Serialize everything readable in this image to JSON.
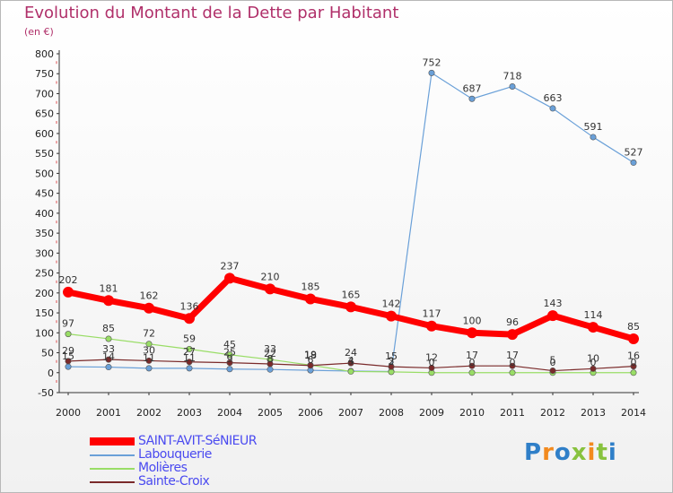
{
  "title": "Evolution du Montant de la Dette par Habitant",
  "subtitle": "(en €)",
  "brand": "Proxiti",
  "chart_data": {
    "type": "line",
    "x": [
      "2000",
      "2001",
      "2002",
      "2003",
      "2004",
      "2005",
      "2006",
      "2007",
      "2008",
      "2009",
      "2010",
      "2011",
      "2012",
      "2013",
      "2014"
    ],
    "ylim": [
      -50,
      800
    ],
    "yticks": [
      -50,
      0,
      50,
      100,
      150,
      200,
      250,
      300,
      350,
      400,
      450,
      500,
      550,
      600,
      650,
      700,
      750,
      800
    ],
    "grid": false,
    "legend_position": "bottom-left",
    "series": [
      {
        "name": "SAINT-AVIT-SéNIEUR",
        "color": "#ff0000",
        "values": [
          202,
          181,
          162,
          136,
          237,
          210,
          185,
          165,
          142,
          117,
          100,
          96,
          143,
          114,
          85
        ],
        "labels": [
          "202",
          "181",
          "162",
          "136",
          "237",
          "210",
          "185",
          "165",
          "142",
          "117",
          "100",
          "96",
          "143",
          "114",
          "85"
        ]
      },
      {
        "name": "Labouquerie",
        "color": "#6aa0d8",
        "values": [
          15,
          14,
          11,
          11,
          9,
          8,
          6,
          4,
          3,
          752,
          687,
          718,
          663,
          591,
          527
        ],
        "labels": [
          "15",
          "14",
          "11",
          "11",
          "9",
          "8",
          "6",
          "4",
          "3",
          "752",
          "687",
          "718",
          "663",
          "591",
          "527"
        ]
      },
      {
        "name": "Molières",
        "color": "#99dd66",
        "values": [
          97,
          85,
          72,
          59,
          45,
          33,
          19,
          3,
          2,
          0,
          0,
          0,
          0,
          0,
          0
        ],
        "labels": [
          "97",
          "85",
          "72",
          "59",
          "45",
          "33",
          "19",
          "3",
          "2",
          "0",
          "0",
          "0",
          "0",
          "0",
          "0"
        ]
      },
      {
        "name": "Sainte-Croix",
        "color": "#7a2a2a",
        "values": [
          29,
          33,
          30,
          27,
          25,
          22,
          18,
          24,
          15,
          12,
          17,
          17,
          5,
          10,
          16
        ],
        "labels": [
          "29",
          "33",
          "30",
          "27",
          "25",
          "22",
          "18",
          "24",
          "15",
          "12",
          "17",
          "17",
          "5",
          "10",
          "16"
        ]
      }
    ]
  }
}
